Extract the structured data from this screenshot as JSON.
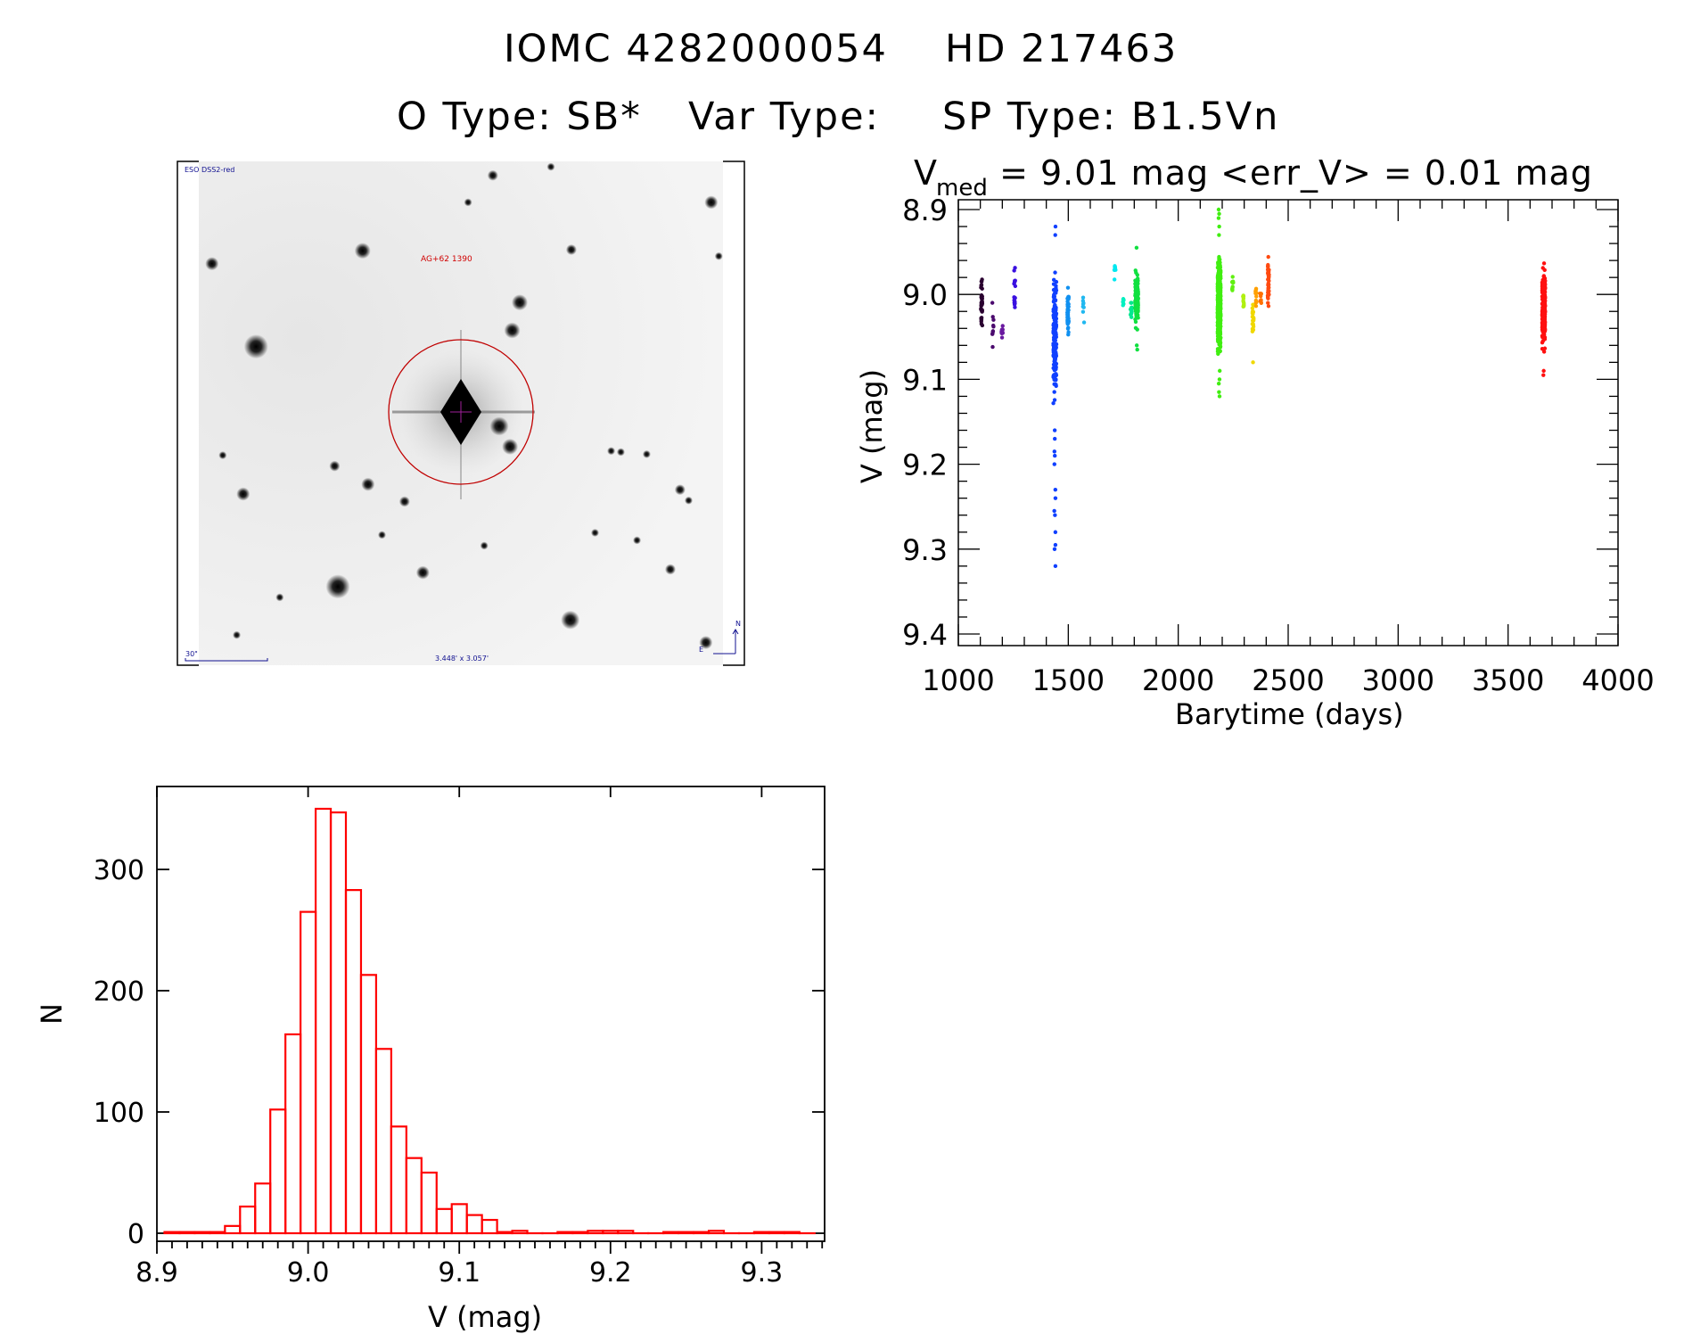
{
  "header": {
    "title_id": "IOMC 4282000054",
    "title_name": "HD 217463",
    "o_type": "O Type: SB*",
    "var_type": "Var Type:",
    "sp_type": "SP Type: B1.5Vn"
  },
  "image_panel": {
    "survey_label": "ESO DSS2-red",
    "target_label": "AG+62 1390",
    "scale_label": "30\"",
    "fov_label": "3.448' x 3.057'",
    "north_label": "N",
    "east_label": "E"
  },
  "chart_data": [
    {
      "type": "scatter",
      "title_prefix": "V",
      "title_sub": "med",
      "title_rest": " = 9.01 mag <err_V> = 0.01 mag",
      "xlabel": "Barytime (days)",
      "ylabel": "V (mag)",
      "xlim": [
        1000,
        4000
      ],
      "ylim": [
        9.4,
        8.9
      ],
      "y_inverted": true,
      "xticks": [
        "1000",
        "1500",
        "2000",
        "2500",
        "3000",
        "3500",
        "4000"
      ],
      "yticks": [
        "8.9",
        "9.0",
        "9.1",
        "9.2",
        "9.3",
        "9.4"
      ],
      "clusters": [
        {
          "t": 1106,
          "vmin": 8.955,
          "vmax": 9.06,
          "n": 40,
          "color": "#2a0030"
        },
        {
          "t": 1157,
          "vmin": 9.0,
          "vmax": 9.085,
          "n": 10,
          "color": "#4b0a6e"
        },
        {
          "t": 1199,
          "vmin": 9.03,
          "vmax": 9.055,
          "n": 12,
          "color": "#6a1aa0"
        },
        {
          "t": 1256,
          "vmin": 8.955,
          "vmax": 9.04,
          "n": 16,
          "color": "#3a10e0"
        },
        {
          "t": 1439,
          "vmin": 8.965,
          "vmax": 9.135,
          "n": 200,
          "color": "#1040ff",
          "outliers": [
            8.92,
            8.93,
            9.16,
            9.17,
            9.185,
            9.19,
            9.2,
            9.23,
            9.24,
            9.255,
            9.26,
            9.28,
            9.295,
            9.3,
            9.32
          ]
        },
        {
          "t": 1499,
          "vmin": 8.985,
          "vmax": 9.065,
          "n": 40,
          "color": "#1090f0"
        },
        {
          "t": 1569,
          "vmin": 8.97,
          "vmax": 9.04,
          "n": 8,
          "color": "#20b8f0"
        },
        {
          "t": 1712,
          "vmin": 8.945,
          "vmax": 9.005,
          "n": 7,
          "color": "#00e8f0"
        },
        {
          "t": 1749,
          "vmin": 9.0,
          "vmax": 9.02,
          "n": 8,
          "color": "#00f0c0"
        },
        {
          "t": 1786,
          "vmin": 9.0,
          "vmax": 9.035,
          "n": 15,
          "color": "#00e890"
        },
        {
          "t": 1811,
          "vmin": 8.96,
          "vmax": 9.05,
          "n": 120,
          "color": "#10e040",
          "outliers": [
            8.945,
            9.06,
            9.065
          ]
        },
        {
          "t": 2186,
          "vmin": 8.945,
          "vmax": 9.08,
          "n": 600,
          "color": "#40ee10",
          "outliers": [
            8.9,
            8.905,
            8.91,
            8.92,
            8.93,
            9.09,
            9.1,
            9.105,
            9.115,
            9.12
          ]
        },
        {
          "t": 2248,
          "vmin": 8.975,
          "vmax": 9.0,
          "n": 10,
          "color": "#60f010"
        },
        {
          "t": 2296,
          "vmin": 8.99,
          "vmax": 9.035,
          "n": 14,
          "color": "#b0f010"
        },
        {
          "t": 2340,
          "vmin": 8.995,
          "vmax": 9.06,
          "n": 25,
          "color": "#f0d800",
          "outliers": [
            9.08
          ]
        },
        {
          "t": 2354,
          "vmin": 8.975,
          "vmax": 9.02,
          "n": 12,
          "color": "#ffa000"
        },
        {
          "t": 2375,
          "vmin": 8.99,
          "vmax": 9.02,
          "n": 8,
          "color": "#ff7000"
        },
        {
          "t": 2410,
          "vmin": 8.94,
          "vmax": 9.03,
          "n": 40,
          "color": "#ff4a10"
        },
        {
          "t": 3662,
          "vmin": 8.955,
          "vmax": 9.08,
          "n": 250,
          "color": "#ff1010",
          "outliers": [
            9.09,
            9.095
          ]
        }
      ]
    },
    {
      "type": "bar",
      "subtype": "histogram",
      "xlabel": "V (mag)",
      "ylabel": "N",
      "xlim": [
        8.9,
        9.342
      ],
      "ylim": [
        0,
        365
      ],
      "xticks": [
        "8.9",
        "9.0",
        "9.1",
        "9.2",
        "9.3"
      ],
      "yticks": [
        "0",
        "100",
        "200",
        "300"
      ],
      "bin_start": 8.905,
      "bin_width": 0.01,
      "counts": [
        1,
        1,
        1,
        1,
        6,
        22,
        41,
        102,
        164,
        265,
        350,
        347,
        283,
        213,
        152,
        88,
        62,
        50,
        20,
        24,
        15,
        11,
        1,
        2,
        0,
        0,
        1,
        1,
        2,
        2,
        2,
        0,
        0,
        1,
        1,
        1,
        2,
        0,
        0,
        1,
        1,
        1,
        0,
        2
      ],
      "color": "#ff0000"
    }
  ]
}
